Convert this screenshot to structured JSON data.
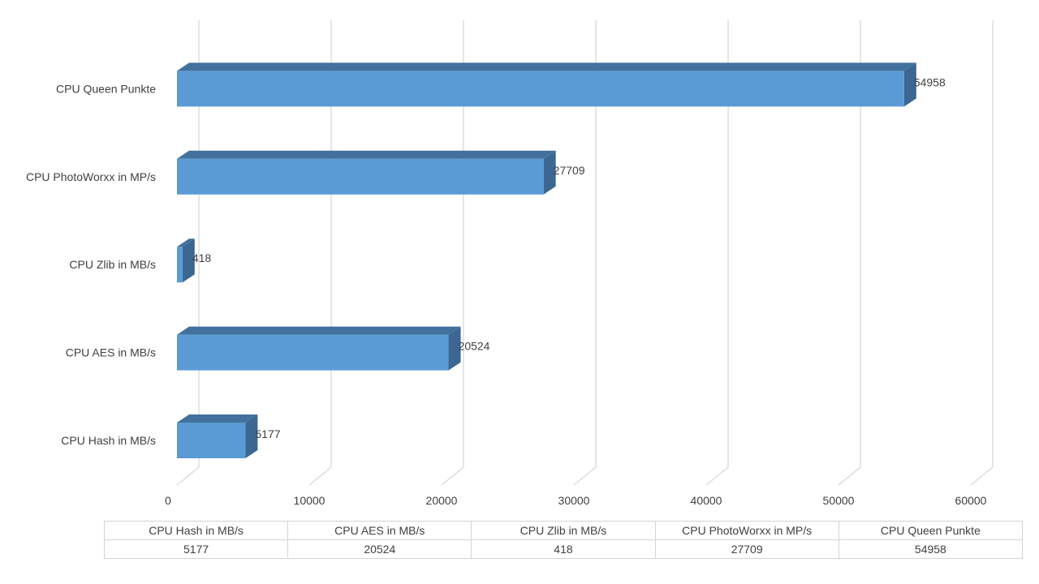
{
  "chart_data": {
    "type": "bar",
    "orientation": "horizontal",
    "style": "3d",
    "categories": [
      "CPU Hash in MB/s",
      "CPU AES in MB/s",
      "CPU Zlib in MB/s",
      "CPU PhotoWorxx in MP/s",
      "CPU Queen Punkte"
    ],
    "values": [
      5177,
      20524,
      418,
      27709,
      54958
    ],
    "xlim": [
      0,
      60000
    ],
    "x_ticks": [
      "0",
      "10000",
      "20000",
      "30000",
      "40000",
      "50000",
      "60000"
    ],
    "grid": true,
    "legend": "none",
    "data_table": true,
    "colors": {
      "bar_front": "#5b9bd5",
      "bar_top": "#41719c",
      "bar_side": "#3b6792",
      "grid": "#d9d9d9"
    }
  }
}
